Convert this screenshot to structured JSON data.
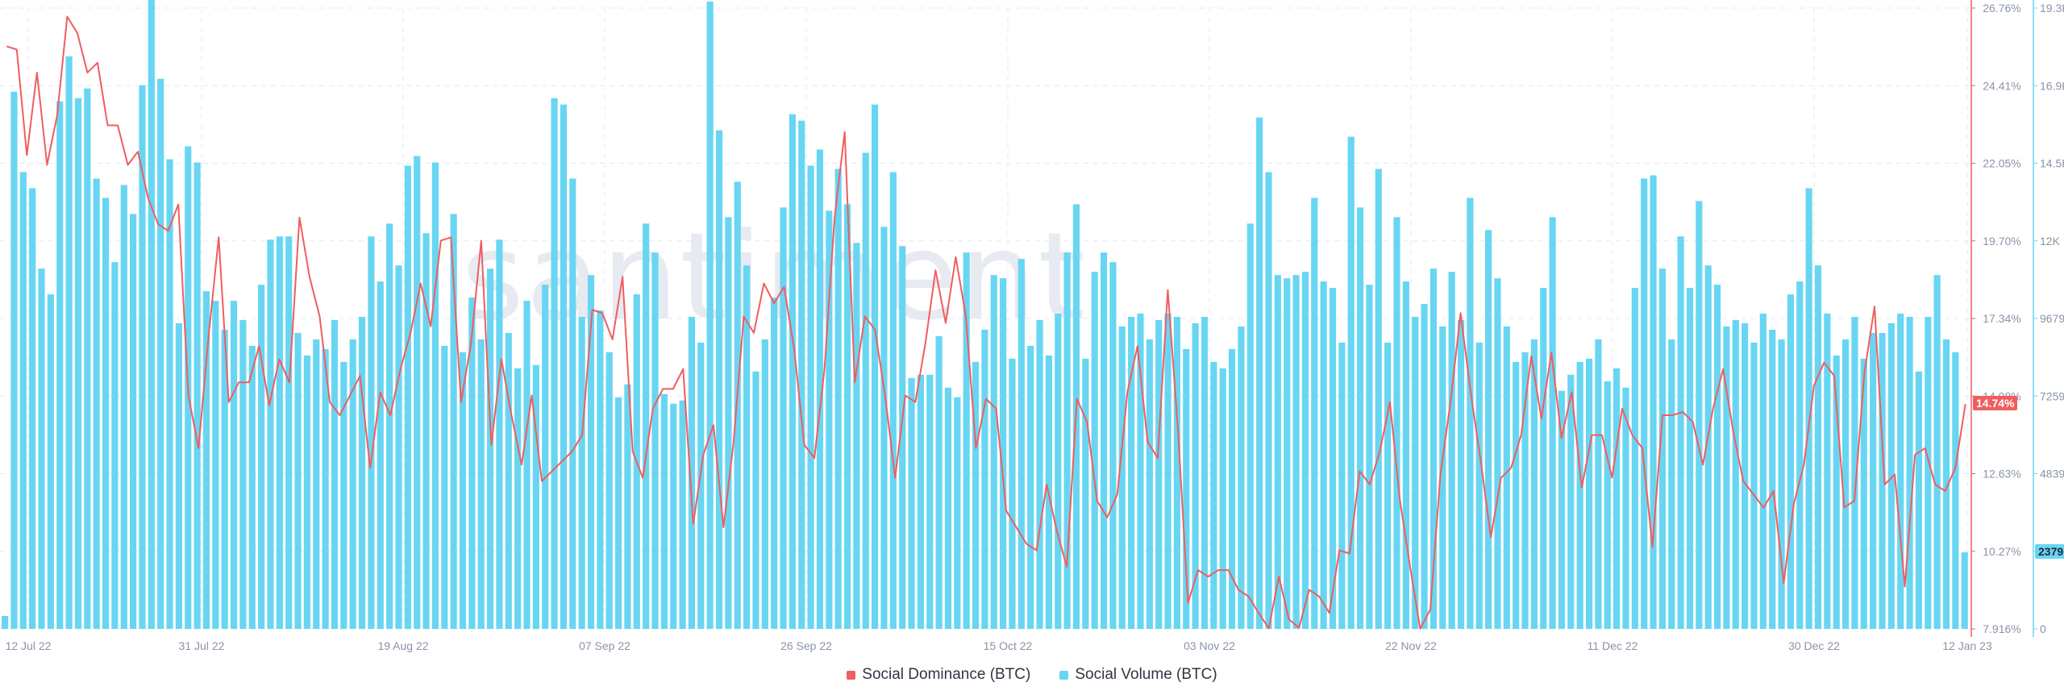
{
  "chart_data": {
    "type": "bar+line",
    "watermark": "santiment",
    "x_labels": [
      "12 Jul 22",
      "31 Jul 22",
      "19 Aug 22",
      "07 Sep 22",
      "26 Sep 22",
      "15 Oct 22",
      "03 Nov 22",
      "22 Nov 22",
      "11 Dec 22",
      "30 Dec 22",
      "12 Jan 23"
    ],
    "left_axis": {
      "series": "Social Dominance (BTC)",
      "ticks": [
        "26.76%",
        "24.41%",
        "22.05%",
        "19.70%",
        "17.34%",
        "14.98%",
        "12.63%",
        "10.27%",
        "7.916%"
      ],
      "range": [
        7.916,
        26.76
      ],
      "unit": "%"
    },
    "right_axis": {
      "series": "Social Volume (BTC)",
      "ticks": [
        "19.3K",
        "16.9K",
        "14.5K",
        "12K",
        "9679",
        "7259",
        "4839",
        "2419",
        "0"
      ],
      "range": [
        0,
        19300
      ]
    },
    "series": [
      {
        "name": "Social Dominance (BTC)",
        "kind": "line",
        "color": "#f05d5e",
        "current_label": "14.74%",
        "values": [
          25.6,
          25.5,
          22.3,
          24.8,
          22,
          23.5,
          26.5,
          26,
          24.8,
          25.1,
          23.2,
          23.2,
          22,
          22.4,
          21,
          20.2,
          20,
          20.8,
          15,
          13.4,
          16.8,
          19.8,
          14.8,
          15.4,
          15.4,
          16.5,
          14.7,
          16.1,
          15.4,
          20.4,
          18.6,
          17.4,
          14.8,
          14.4,
          15,
          15.6,
          12.8,
          15.1,
          14.4,
          15.8,
          16.9,
          18.4,
          17.1,
          19.7,
          19.8,
          14.8,
          16.6,
          19.7,
          13.5,
          16.1,
          14.4,
          12.9,
          15,
          12.4,
          12.7,
          13,
          13.3,
          13.8,
          17.6,
          17.5,
          16.7,
          18.6,
          13.3,
          12.5,
          14.6,
          15.2,
          15.2,
          15.8,
          11.1,
          13.2,
          14.1,
          11,
          13.6,
          17.4,
          16.9,
          18.4,
          17.8,
          18.3,
          16.4,
          13.5,
          13.1,
          15.8,
          20.4,
          23,
          15.4,
          17.4,
          17,
          15,
          12.5,
          15,
          14.8,
          16.6,
          18.8,
          17.2,
          19.2,
          17.4,
          13.4,
          14.9,
          14.6,
          11.5,
          11,
          10.5,
          10.3,
          12.3,
          10.9,
          9.8,
          14.9,
          14.2,
          11.8,
          11.3,
          12,
          15.1,
          16.5,
          13.6,
          13.1,
          18.2,
          14,
          8.7,
          9.7,
          9.5,
          9.7,
          9.7,
          9.1,
          8.9,
          8.4,
          7.93,
          9.5,
          8.2,
          7.95,
          9.1,
          8.9,
          8.4,
          10.3,
          10.2,
          12.7,
          12.3,
          13.3,
          14.8,
          11.8,
          9.8,
          7.92,
          8.5,
          12.6,
          14.8,
          17.5,
          15.1,
          13,
          10.7,
          12.5,
          12.8,
          13.8,
          16.2,
          14.3,
          16.3,
          13.7,
          15.1,
          12.2,
          13.8,
          13.8,
          12.5,
          14.6,
          13.8,
          13.4,
          10.4,
          14.4,
          14.4,
          14.5,
          14.2,
          12.9,
          14.6,
          15.8,
          13.9,
          12.4,
          12,
          11.6,
          12.1,
          9.3,
          11.7,
          12.9,
          15.3,
          16,
          15.6,
          11.6,
          11.8,
          15.7,
          17.7,
          12.3,
          12.6,
          9.2,
          13.2,
          13.4,
          12.3,
          12.1,
          12.8,
          14.74
        ]
      },
      {
        "name": "Social Volume (BTC)",
        "kind": "bar",
        "color": "#68d6f2",
        "current_label": "2379",
        "values": [
          400,
          16700,
          14200,
          13700,
          11200,
          10400,
          16400,
          17800,
          16500,
          16800,
          14000,
          13400,
          11400,
          13800,
          12900,
          16900,
          19600,
          17100,
          14600,
          9500,
          15000,
          14500,
          10500,
          10200,
          9300,
          10200,
          9600,
          8800,
          10700,
          12100,
          12200,
          12200,
          9200,
          8500,
          9000,
          8700,
          9600,
          8300,
          9000,
          9700,
          12200,
          10800,
          12600,
          11300,
          14400,
          14700,
          12300,
          14500,
          8800,
          12900,
          8600,
          10300,
          9000,
          11200,
          12100,
          9200,
          8100,
          10200,
          8200,
          10700,
          16500,
          16300,
          14000,
          9700,
          11000,
          9900,
          8600,
          7200,
          7600,
          10400,
          12600,
          11700,
          7300,
          7000,
          7100,
          9700,
          8900,
          19500,
          15500,
          12800,
          13900,
          11300,
          8000,
          9000,
          10300,
          13100,
          16000,
          15800,
          14400,
          14900,
          13000,
          14300,
          13200,
          12000,
          14800,
          16300,
          12500,
          14200,
          11900,
          7800,
          7900,
          7900,
          9100,
          7500,
          7200,
          11700,
          8300,
          9300,
          11000,
          10900,
          8400,
          11500,
          8800,
          9600,
          8500,
          9800,
          11700,
          13200,
          8400,
          11100,
          11700,
          11400,
          9400,
          9700,
          9800,
          9000,
          9600,
          9800,
          9700,
          8700,
          9500,
          9700,
          8300,
          8100,
          8700,
          9400,
          12600,
          15900,
          14200,
          11000,
          10900,
          11000,
          11100,
          13400,
          10800,
          10600,
          8900,
          15300,
          13100,
          10700,
          14300,
          8900,
          12800,
          10800,
          9700,
          10100,
          11200,
          9400,
          11100,
          9600,
          13400,
          8900,
          12400,
          10900,
          9400,
          8300,
          8600,
          9000,
          10600,
          12800,
          7400,
          7900,
          8300,
          8400,
          9000,
          7700,
          8100,
          7500,
          10600,
          14000,
          14100,
          11200,
          9000,
          12200,
          10600,
          13300,
          11300,
          10700,
          9400,
          9600,
          9500,
          8900,
          9800,
          9300,
          9000,
          10400,
          10800,
          13700,
          11300,
          9800,
          8500,
          9000,
          9700,
          8400,
          9200,
          9200,
          9500,
          9800,
          9700,
          8000,
          9700,
          11000,
          9000,
          8600,
          2379
        ]
      }
    ],
    "grid": true
  },
  "legend": [
    {
      "label": "Social Dominance (BTC)",
      "color": "#f05d5e"
    },
    {
      "label": "Social Volume (BTC)",
      "color": "#68d6f2"
    }
  ]
}
